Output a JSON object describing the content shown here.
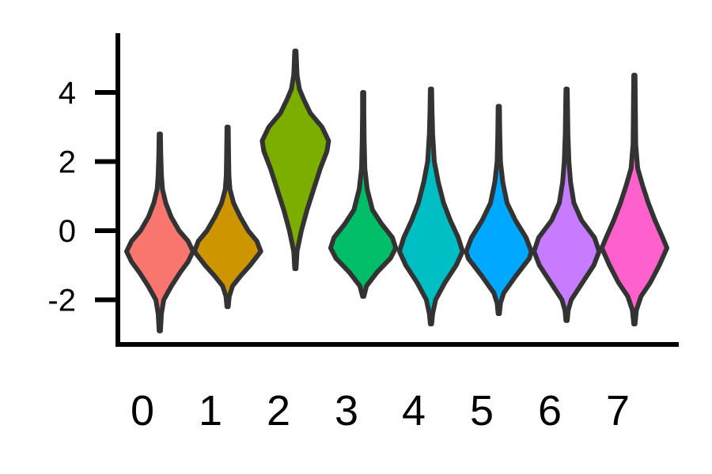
{
  "chart_data": {
    "type": "violin",
    "title": "",
    "xlabel": "",
    "ylabel": "",
    "ylim": [
      -3.2,
      5.8
    ],
    "yticks": [
      4,
      2,
      0,
      -2
    ],
    "ytick_labels": [
      "4",
      "2",
      "0",
      "-2"
    ],
    "categories": [
      "0",
      "1",
      "2",
      "3",
      "4",
      "5",
      "6",
      "7"
    ],
    "series": [
      {
        "category": "0",
        "color": "#F8766D",
        "min": -2.9,
        "max": 2.8,
        "profile": [
          [
            -2.9,
            0.02
          ],
          [
            -2.4,
            0.05
          ],
          [
            -2.0,
            0.12
          ],
          [
            -1.6,
            0.35
          ],
          [
            -1.2,
            0.62
          ],
          [
            -0.9,
            0.85
          ],
          [
            -0.6,
            1.0
          ],
          [
            -0.3,
            0.85
          ],
          [
            0.0,
            0.58
          ],
          [
            0.4,
            0.34
          ],
          [
            0.8,
            0.18
          ],
          [
            1.2,
            0.08
          ],
          [
            1.6,
            0.05
          ],
          [
            2.2,
            0.03
          ],
          [
            2.8,
            0.02
          ]
        ]
      },
      {
        "category": "1",
        "color": "#CD9600",
        "min": -2.2,
        "max": 3.0,
        "profile": [
          [
            -2.2,
            0.02
          ],
          [
            -1.9,
            0.05
          ],
          [
            -1.6,
            0.15
          ],
          [
            -1.3,
            0.4
          ],
          [
            -1.0,
            0.68
          ],
          [
            -0.6,
            1.0
          ],
          [
            -0.3,
            0.88
          ],
          [
            0.0,
            0.62
          ],
          [
            0.4,
            0.38
          ],
          [
            0.8,
            0.18
          ],
          [
            1.2,
            0.07
          ],
          [
            1.6,
            0.04
          ],
          [
            2.2,
            0.03
          ],
          [
            3.0,
            0.02
          ]
        ]
      },
      {
        "category": "2",
        "color": "#7CAE00",
        "min": -1.1,
        "max": 5.2,
        "profile": [
          [
            -1.1,
            0.02
          ],
          [
            -0.6,
            0.05
          ],
          [
            0.0,
            0.18
          ],
          [
            0.6,
            0.35
          ],
          [
            1.2,
            0.55
          ],
          [
            1.8,
            0.75
          ],
          [
            2.3,
            0.95
          ],
          [
            2.6,
            1.0
          ],
          [
            3.0,
            0.8
          ],
          [
            3.4,
            0.45
          ],
          [
            3.8,
            0.25
          ],
          [
            4.1,
            0.12
          ],
          [
            4.5,
            0.05
          ],
          [
            5.2,
            0.02
          ]
        ]
      },
      {
        "category": "3",
        "color": "#00BE67",
        "min": -1.9,
        "max": 4.0,
        "profile": [
          [
            -1.9,
            0.02
          ],
          [
            -1.6,
            0.1
          ],
          [
            -1.2,
            0.42
          ],
          [
            -0.8,
            0.82
          ],
          [
            -0.5,
            0.98
          ],
          [
            -0.2,
            0.88
          ],
          [
            0.2,
            0.55
          ],
          [
            0.6,
            0.28
          ],
          [
            1.2,
            0.12
          ],
          [
            1.8,
            0.05
          ],
          [
            2.6,
            0.03
          ],
          [
            3.4,
            0.02
          ],
          [
            4.0,
            0.02
          ]
        ]
      },
      {
        "category": "4",
        "color": "#00BFC4",
        "min": -2.7,
        "max": 4.1,
        "profile": [
          [
            -2.7,
            0.02
          ],
          [
            -2.4,
            0.05
          ],
          [
            -2.0,
            0.14
          ],
          [
            -1.5,
            0.42
          ],
          [
            -1.0,
            0.76
          ],
          [
            -0.6,
            0.95
          ],
          [
            -0.2,
            0.82
          ],
          [
            0.3,
            0.58
          ],
          [
            0.8,
            0.38
          ],
          [
            1.4,
            0.22
          ],
          [
            2.0,
            0.1
          ],
          [
            2.8,
            0.05
          ],
          [
            3.5,
            0.03
          ],
          [
            4.1,
            0.02
          ]
        ]
      },
      {
        "category": "5",
        "color": "#00A9FF",
        "min": -2.4,
        "max": 3.6,
        "profile": [
          [
            -2.4,
            0.02
          ],
          [
            -2.1,
            0.05
          ],
          [
            -1.8,
            0.15
          ],
          [
            -1.3,
            0.52
          ],
          [
            -0.8,
            0.92
          ],
          [
            -0.6,
            0.98
          ],
          [
            -0.2,
            0.82
          ],
          [
            0.3,
            0.5
          ],
          [
            0.8,
            0.25
          ],
          [
            1.4,
            0.12
          ],
          [
            2.0,
            0.05
          ],
          [
            2.8,
            0.03
          ],
          [
            3.6,
            0.02
          ]
        ]
      },
      {
        "category": "6",
        "color": "#C77CFF",
        "min": -2.6,
        "max": 4.1,
        "profile": [
          [
            -2.6,
            0.02
          ],
          [
            -2.3,
            0.05
          ],
          [
            -2.0,
            0.14
          ],
          [
            -1.5,
            0.48
          ],
          [
            -1.0,
            0.82
          ],
          [
            -0.6,
            0.98
          ],
          [
            -0.2,
            0.84
          ],
          [
            0.3,
            0.45
          ],
          [
            0.8,
            0.22
          ],
          [
            1.4,
            0.12
          ],
          [
            2.0,
            0.07
          ],
          [
            2.8,
            0.04
          ],
          [
            3.5,
            0.03
          ],
          [
            4.1,
            0.02
          ]
        ]
      },
      {
        "category": "7",
        "color": "#FF61CC",
        "min": -2.7,
        "max": 4.5,
        "profile": [
          [
            -2.7,
            0.02
          ],
          [
            -2.3,
            0.06
          ],
          [
            -1.9,
            0.2
          ],
          [
            -1.5,
            0.48
          ],
          [
            -1.0,
            0.75
          ],
          [
            -0.5,
            0.98
          ],
          [
            -0.2,
            0.85
          ],
          [
            0.3,
            0.62
          ],
          [
            0.8,
            0.42
          ],
          [
            1.3,
            0.25
          ],
          [
            1.8,
            0.1
          ],
          [
            2.5,
            0.04
          ],
          [
            3.5,
            0.03
          ],
          [
            4.5,
            0.02
          ]
        ]
      }
    ]
  }
}
